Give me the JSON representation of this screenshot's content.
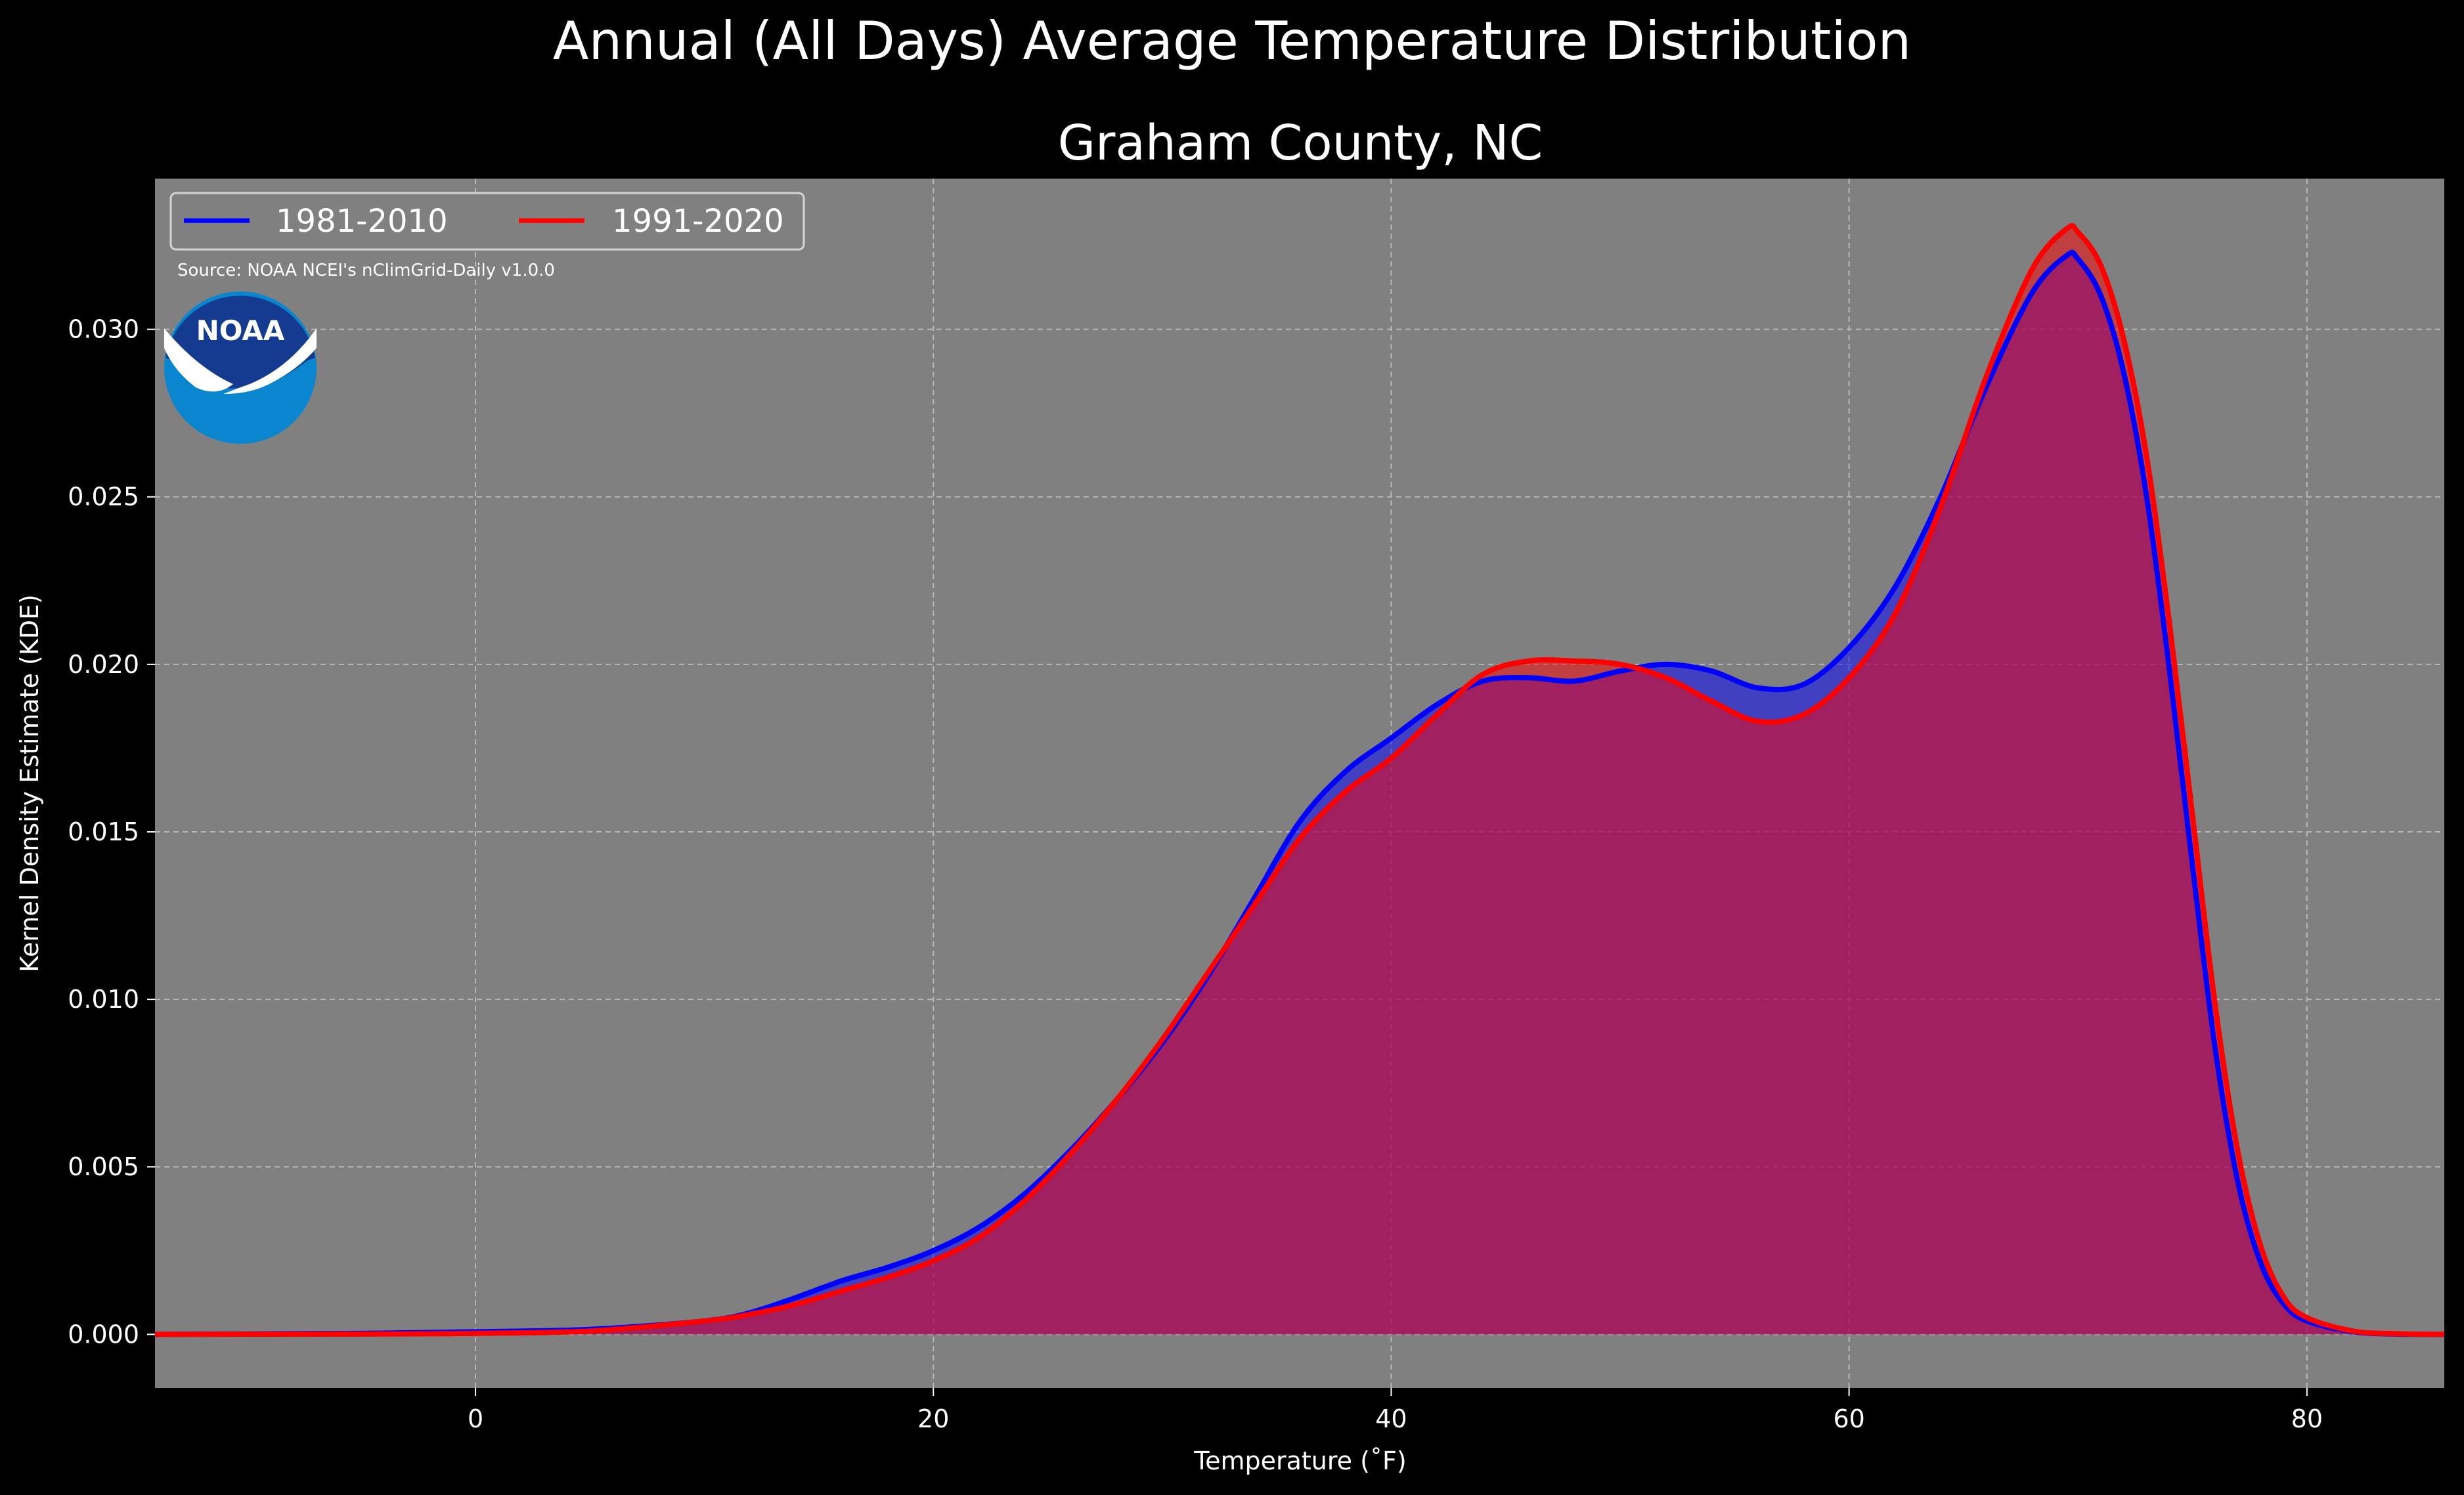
{
  "chart_data": {
    "type": "area",
    "suptitle": "Annual (All Days) Average Temperature Distribution",
    "title": "Graham County, NC",
    "xlabel": "Temperature ($^\\circ$F)",
    "xlabel_display": "Temperature (˚F)",
    "ylabel": "Kernel Density Estimate (KDE)",
    "xlim": [
      -14,
      86
    ],
    "ylim": [
      -0.0016,
      0.0345
    ],
    "xticks": [
      0,
      20,
      40,
      60,
      80
    ],
    "yticks": [
      0.0,
      0.005,
      0.01,
      0.015,
      0.02,
      0.025,
      0.03
    ],
    "ytick_labels": [
      "0.000",
      "0.005",
      "0.010",
      "0.015",
      "0.020",
      "0.025",
      "0.030"
    ],
    "grid": true,
    "legend_position": "top-left",
    "source_note": "Source: NOAA NCEI's nClimGrid-Daily v1.0.0",
    "logo_text": "NOAA",
    "series": [
      {
        "name": "1981-2010",
        "color": "#0000ff",
        "x": [
          -14,
          -5,
          0,
          5,
          10,
          12,
          14,
          16,
          18,
          20,
          22,
          24,
          26,
          28,
          30,
          32,
          34,
          36,
          38,
          40,
          42,
          44,
          46,
          48,
          50,
          52,
          54,
          56,
          58,
          60,
          62,
          64,
          66,
          68,
          69.5,
          70,
          71,
          72,
          73,
          74,
          75,
          76,
          77,
          78,
          79,
          80,
          82,
          84,
          86
        ],
        "values": [
          0.0,
          3e-05,
          8e-05,
          0.00015,
          0.0004,
          0.00065,
          0.0011,
          0.0016,
          0.002,
          0.0025,
          0.0032,
          0.0042,
          0.0055,
          0.007,
          0.0087,
          0.0107,
          0.013,
          0.0153,
          0.0168,
          0.0178,
          0.0188,
          0.0195,
          0.0196,
          0.0195,
          0.0198,
          0.02,
          0.0198,
          0.0193,
          0.0194,
          0.0205,
          0.0223,
          0.025,
          0.0283,
          0.0311,
          0.0322,
          0.0321,
          0.031,
          0.0287,
          0.025,
          0.0198,
          0.014,
          0.0085,
          0.0045,
          0.0021,
          0.0009,
          0.0004,
          8e-05,
          1e-05,
          0.0
        ]
      },
      {
        "name": "1991-2020",
        "color": "#ff0000",
        "x": [
          -14,
          -5,
          0,
          5,
          10,
          12,
          14,
          16,
          18,
          20,
          22,
          24,
          26,
          28,
          30,
          32,
          34,
          36,
          38,
          40,
          42,
          44,
          46,
          48,
          50,
          52,
          54,
          56,
          58,
          60,
          62,
          64,
          66,
          68,
          69.5,
          70,
          71,
          72,
          73,
          74,
          75,
          76,
          77,
          78,
          79,
          80,
          82,
          84,
          86
        ],
        "values": [
          0.0,
          1e-05,
          3e-05,
          0.0001,
          0.0004,
          0.0006,
          0.0009,
          0.0013,
          0.0017,
          0.0022,
          0.0029,
          0.004,
          0.0054,
          0.007,
          0.0088,
          0.0108,
          0.0128,
          0.0148,
          0.0162,
          0.0172,
          0.0185,
          0.0197,
          0.0201,
          0.0201,
          0.02,
          0.0196,
          0.0189,
          0.0183,
          0.0185,
          0.0196,
          0.0215,
          0.0247,
          0.0286,
          0.0318,
          0.033,
          0.0329,
          0.0319,
          0.0297,
          0.0262,
          0.0212,
          0.0155,
          0.0098,
          0.0054,
          0.0026,
          0.0011,
          0.0005,
          0.0001,
          2e-05,
          0.0
        ]
      }
    ]
  }
}
